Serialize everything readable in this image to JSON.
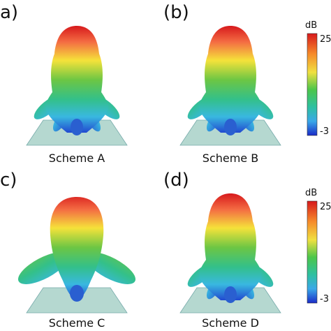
{
  "panels": [
    {
      "label": "a)",
      "caption": "Scheme A"
    },
    {
      "label": "(b)",
      "caption": "Scheme B"
    },
    {
      "label": "c)",
      "caption": "Scheme C"
    },
    {
      "label": "(d)",
      "caption": "Scheme D"
    }
  ],
  "colorbars": [
    {
      "unit": "dB",
      "max": "25",
      "min": "-3"
    },
    {
      "unit": "dB",
      "max": "25",
      "min": "-3"
    }
  ]
}
